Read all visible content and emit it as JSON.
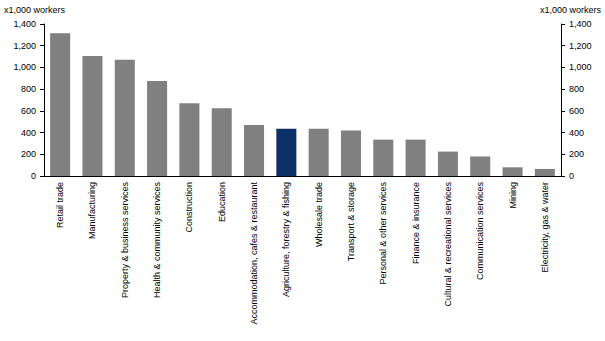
{
  "chart_data": {
    "type": "bar",
    "ylabel": "x1,000 workers",
    "y2label": "x1,000 workers",
    "categories": [
      "Retail trade",
      "Manufacturing",
      "Property & business services",
      "Health & community services",
      "Construction",
      "Education",
      "Accommodation, cafes & restaurant",
      "Agriculture, forestry & fishing",
      "Wholesale trade",
      "Transport & storage",
      "Personal & other services",
      "Finance & insurance",
      "Cultural & recreational services",
      "Communication services",
      "Mining",
      "Electricity, gas & water"
    ],
    "values": [
      1315,
      1105,
      1070,
      875,
      670,
      625,
      470,
      435,
      435,
      420,
      335,
      335,
      225,
      180,
      80,
      65
    ],
    "colors": [
      "#808080",
      "#808080",
      "#808080",
      "#808080",
      "#808080",
      "#808080",
      "#808080",
      "#0b2f66",
      "#808080",
      "#808080",
      "#808080",
      "#808080",
      "#808080",
      "#808080",
      "#808080",
      "#808080"
    ],
    "ylim": [
      0,
      1400
    ],
    "yticks": [
      0,
      200,
      400,
      600,
      800,
      {
        "value": 1000,
        "label": "1,000"
      },
      {
        "value": 1200,
        "label": "1,200"
      },
      {
        "value": 1400,
        "label": "1,400"
      }
    ],
    "y2lim": [
      0,
      1400
    ],
    "y2ticks": [
      0,
      200,
      400,
      600,
      800,
      {
        "value": 1000,
        "label": "1,000"
      },
      {
        "value": 1200,
        "label": "1,200"
      },
      {
        "value": 1400,
        "label": "1,400"
      }
    ],
    "grid": false
  }
}
